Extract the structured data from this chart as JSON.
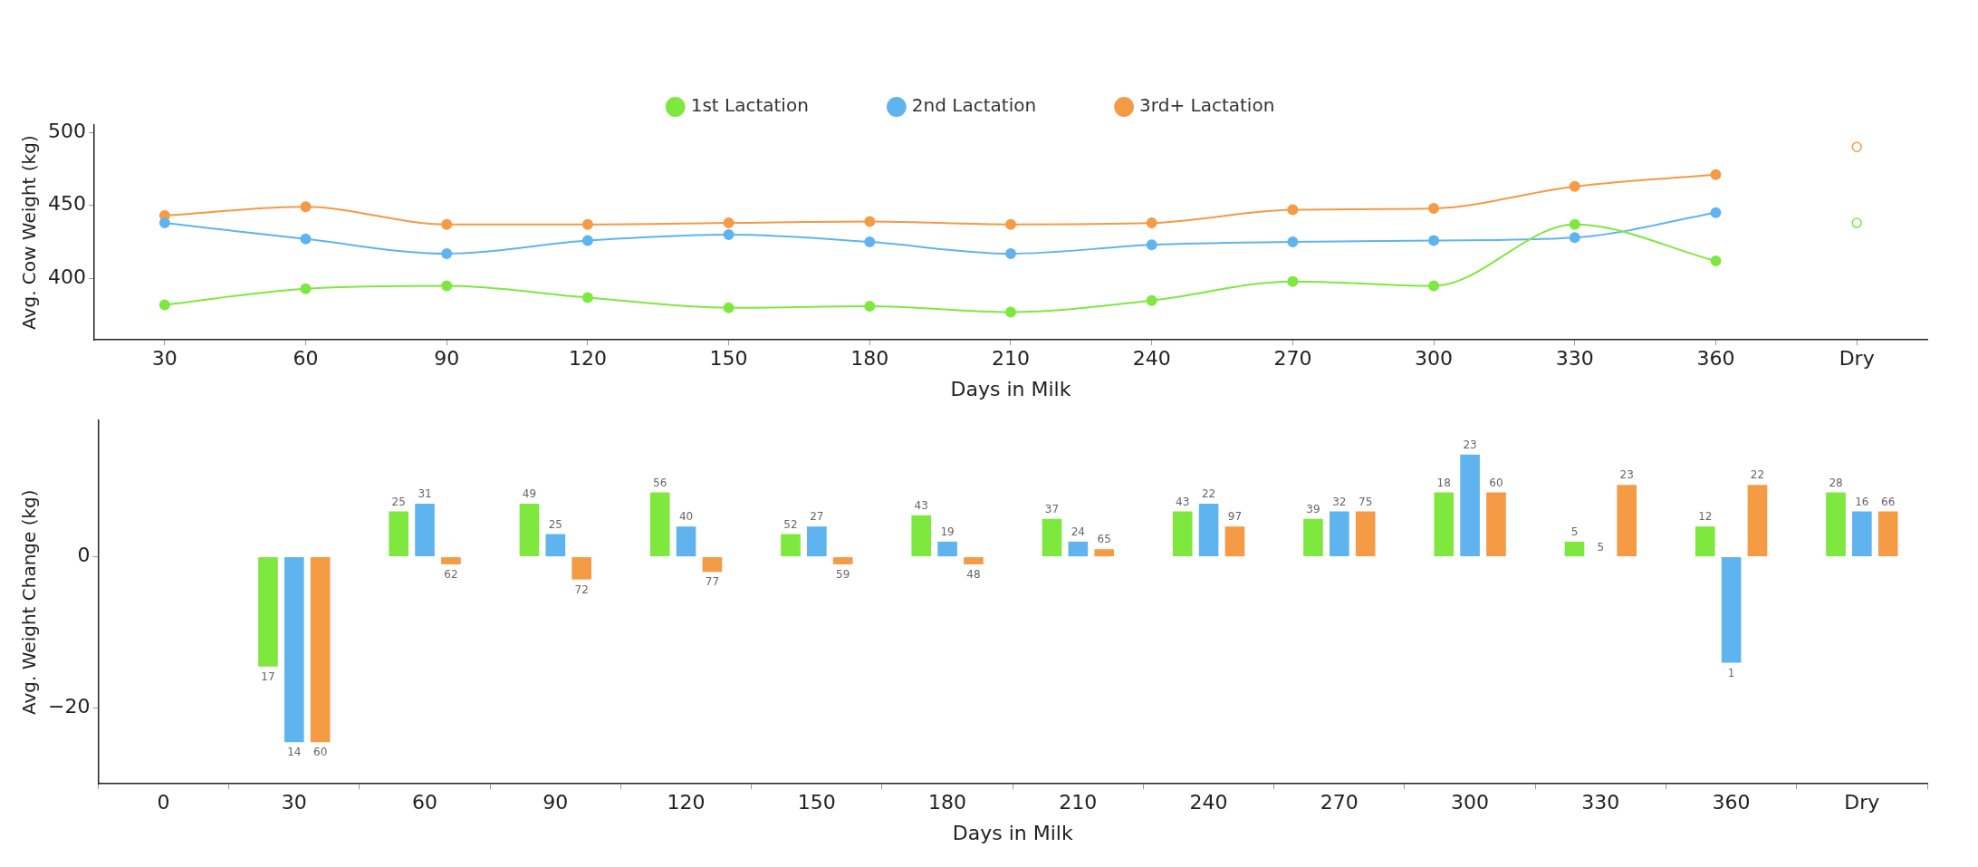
{
  "chart_data": [
    {
      "type": "line",
      "xlabel": "Days in Milk",
      "ylabel": "Avg. Cow Weight (kg)",
      "categories": [
        "30",
        "60",
        "90",
        "120",
        "150",
        "180",
        "210",
        "240",
        "270",
        "300",
        "330",
        "360",
        "Dry"
      ],
      "ylim": [
        358,
        505
      ],
      "yticks": [
        400,
        450,
        500
      ],
      "grid": false,
      "legend": "top",
      "marker": "circle",
      "series": [
        {
          "name": "1st Lactation",
          "color": "#7ee83f",
          "values": [
            382,
            393,
            395,
            387,
            380,
            381,
            377,
            385,
            398,
            395,
            437,
            412,
            null
          ]
        },
        {
          "name": "2nd Lactation",
          "color": "#5fb4f0",
          "values": [
            438,
            427,
            417,
            426,
            430,
            425,
            417,
            423,
            425,
            426,
            428,
            445,
            null
          ]
        },
        {
          "name": "3rd+ Lactation",
          "color": "#f59a45",
          "values": [
            443,
            449,
            437,
            437,
            438,
            439,
            437,
            438,
            447,
            448,
            463,
            471,
            null
          ]
        },
        {
          "type": "scatter",
          "color": "#7ee83f",
          "x": [
            "Dry"
          ],
          "values": [
            438
          ]
        },
        {
          "type": "scatter",
          "color": "#f59a45",
          "x": [
            "Dry"
          ],
          "values": [
            490
          ]
        }
      ]
    },
    {
      "type": "bar",
      "xlabel": "Days in Milk",
      "ylabel": "Avg. Weight Change (kg)",
      "categories": [
        "0",
        "30",
        "60",
        "90",
        "120",
        "150",
        "180",
        "210",
        "240",
        "270",
        "300",
        "330",
        "360",
        "Dry"
      ],
      "ylim": [
        -30,
        18
      ],
      "yticks": [
        {
          "value": -20,
          "label": "−20"
        },
        0
      ],
      "grid": false,
      "legend": false,
      "series": [
        {
          "color": "#7ee83f",
          "values": [
            null,
            -14.5,
            6,
            7,
            8.5,
            3,
            5.5,
            5,
            6,
            5,
            8.5,
            2,
            4,
            8.5
          ]
        },
        {
          "color": "#5fb4f0",
          "values": [
            null,
            -24.5,
            7,
            3,
            4,
            4,
            2,
            2,
            7,
            6,
            13.5,
            0,
            -14,
            6
          ]
        },
        {
          "color": "#f59a45",
          "values": [
            null,
            -24.5,
            -1,
            -3,
            -2,
            -1,
            -1,
            1,
            4,
            6,
            8.5,
            9.5,
            9.5,
            6
          ]
        }
      ],
      "annotations": [
        "17",
        "14",
        "60",
        "25",
        "31",
        "62",
        "49",
        "25",
        "72",
        "56",
        "40",
        "77",
        "52",
        "27",
        "59",
        "43",
        "19",
        "48",
        "37",
        "24",
        "65",
        "43",
        "22",
        "97",
        "39",
        "32",
        "75",
        "18",
        "23",
        "60",
        "5",
        "5",
        "23",
        "12",
        "1",
        "22",
        "28",
        "16",
        "66"
      ]
    }
  ]
}
